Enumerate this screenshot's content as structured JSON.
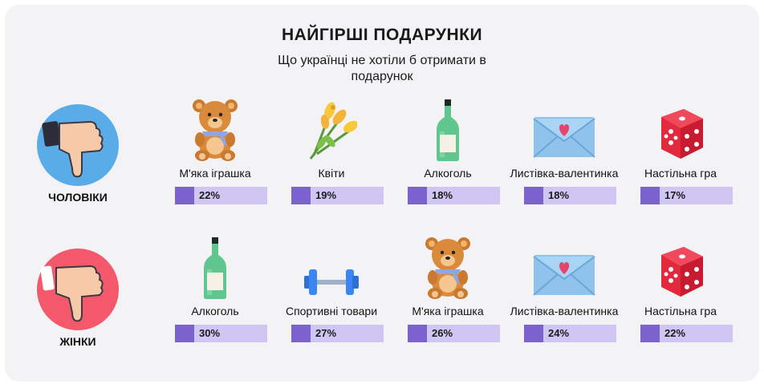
{
  "title": "НАЙГІРШІ ПОДАРУНКИ",
  "subtitle": "Що українці не хотіли б отримати в подарунок",
  "colors": {
    "men_circle": "#5aace8",
    "women_circle": "#f4586b",
    "bar_track": "#cfc6f3",
    "bar_accent": "#7b62cc",
    "card": "#f3f3f6"
  },
  "chart_data": [
    {
      "type": "table",
      "group": "ЧОЛОВІКИ",
      "icon": "thumbs-down-icon",
      "items": [
        {
          "label": "М'яка іграшка",
          "value": 22,
          "display": "22%",
          "icon": "teddy-bear-icon"
        },
        {
          "label": "Квіти",
          "value": 19,
          "display": "19%",
          "icon": "flowers-icon"
        },
        {
          "label": "Алкоголь",
          "value": 18,
          "display": "18%",
          "icon": "bottle-icon"
        },
        {
          "label": "Листівка-валентинка",
          "value": 18,
          "display": "18%",
          "icon": "envelope-heart-icon"
        },
        {
          "label": "Настільна гра",
          "value": 17,
          "display": "17%",
          "icon": "dice-icon"
        }
      ]
    },
    {
      "type": "table",
      "group": "ЖІНКИ",
      "icon": "thumbs-down-icon",
      "items": [
        {
          "label": "Алкоголь",
          "value": 30,
          "display": "30%",
          "icon": "bottle-icon"
        },
        {
          "label": "Спортивні товари",
          "value": 27,
          "display": "27%",
          "icon": "dumbbell-icon"
        },
        {
          "label": "М'яка іграшка",
          "value": 26,
          "display": "26%",
          "icon": "teddy-bear-icon"
        },
        {
          "label": "Листівка-валентинка",
          "value": 24,
          "display": "24%",
          "icon": "envelope-heart-icon"
        },
        {
          "label": "Настільна гра",
          "value": 22,
          "display": "22%",
          "icon": "dice-icon"
        }
      ]
    }
  ]
}
